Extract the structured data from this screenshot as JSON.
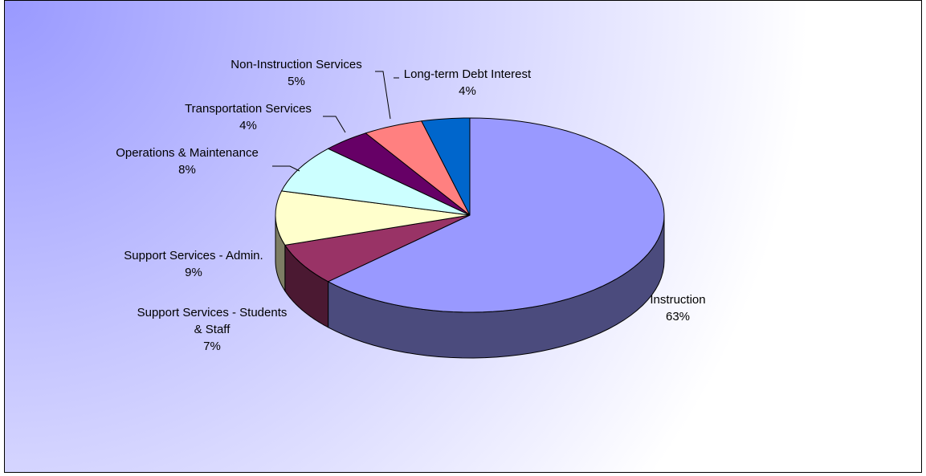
{
  "chart_data": {
    "type": "pie",
    "style": "3d-exploded-none",
    "title": "",
    "start_angle_deg": 90,
    "direction": "clockwise",
    "series": [
      {
        "values": [
          63,
          7,
          9,
          8,
          4,
          5,
          4
        ],
        "categories": [
          "Instruction",
          "Support Services - Students & Staff",
          "Support Services - Admin.",
          "Operations & Maintenance",
          "Transportation Services",
          "Non-Instruction Services",
          "Long-term Debt Interest"
        ]
      }
    ],
    "slices": [
      {
        "category": "Instruction",
        "label_lines": [
          "Instruction"
        ],
        "percent_label": "63%",
        "value": 63,
        "top_color": "#9999FF",
        "side_color": "#4B4B7D"
      },
      {
        "category": "Support Services - Students & Staff",
        "label_lines": [
          "Support Services - Students",
          "& Staff"
        ],
        "percent_label": "7%",
        "value": 7,
        "top_color": "#993366",
        "side_color": "#4B1932"
      },
      {
        "category": "Support Services - Admin.",
        "label_lines": [
          "Support Services - Admin."
        ],
        "percent_label": "9%",
        "value": 9,
        "top_color": "#FFFFCC",
        "side_color": "#7D7D64"
      },
      {
        "category": "Operations & Maintenance",
        "label_lines": [
          "Operations & Maintenance"
        ],
        "percent_label": "8%",
        "value": 8,
        "top_color": "#CCFFFF",
        "side_color": "#647D7D"
      },
      {
        "category": "Transportation Services",
        "label_lines": [
          "Transportation Services"
        ],
        "percent_label": "4%",
        "value": 4,
        "top_color": "#660066",
        "side_color": "#330033"
      },
      {
        "category": "Non-Instruction Services",
        "label_lines": [
          "Non-Instruction Services"
        ],
        "percent_label": "5%",
        "value": 5,
        "top_color": "#FF8080",
        "side_color": "#7D3F3F"
      },
      {
        "category": "Long-term Debt Interest",
        "label_lines": [
          "Long-term Debt Interest"
        ],
        "percent_label": "4%",
        "value": 4,
        "top_color": "#0066CC",
        "side_color": "#003366"
      }
    ],
    "background": {
      "gradient_start": "#9999FF",
      "gradient_end": "#FFFFFF"
    },
    "legend": "none"
  }
}
